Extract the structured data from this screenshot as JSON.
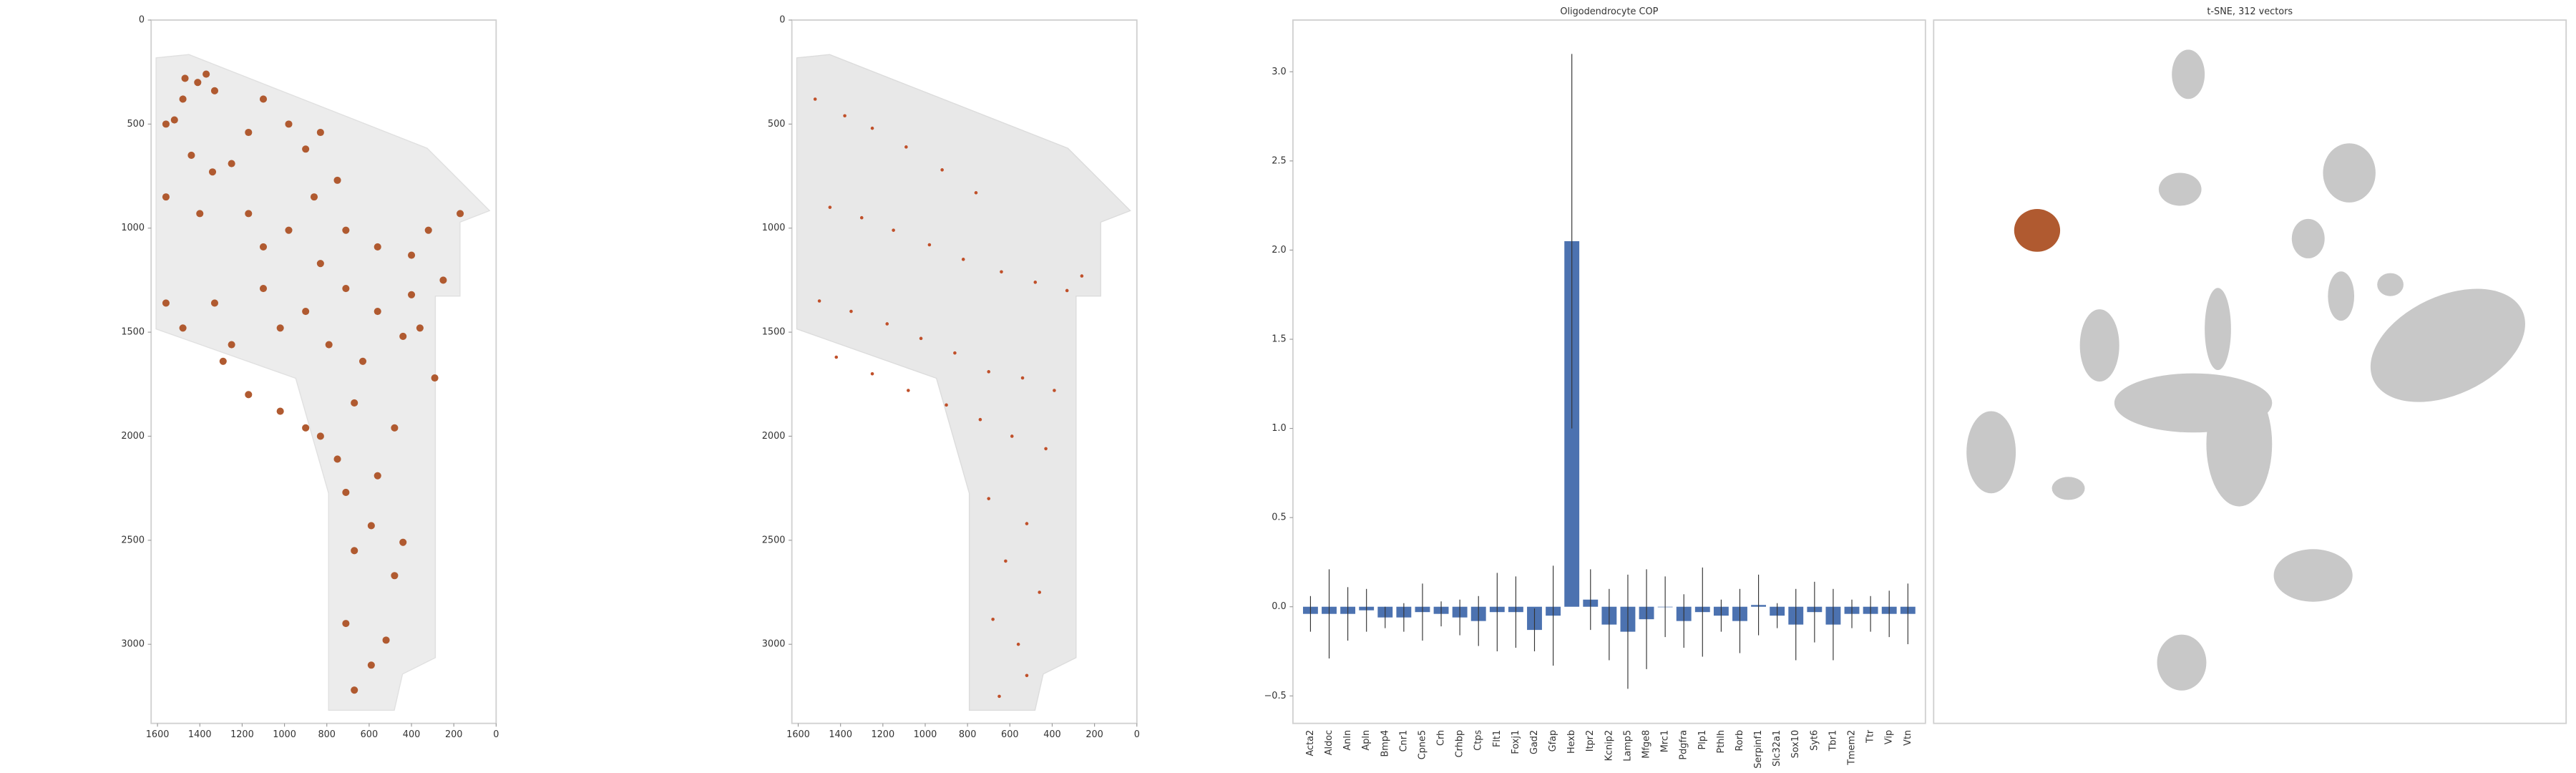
{
  "chart_data": [
    {
      "type": "scatter",
      "color": "#b05a30",
      "xlim": [
        1630,
        0
      ],
      "ylim": [
        3380,
        0
      ],
      "xticks": [
        1600,
        1400,
        1200,
        1000,
        800,
        600,
        400,
        200,
        0
      ],
      "yticks": [
        0,
        500,
        1000,
        1500,
        2000,
        2500,
        3000
      ],
      "x": [
        1470,
        1410,
        1370,
        1330,
        1480,
        1560,
        1520,
        1440,
        1340,
        1250,
        1170,
        1100,
        980,
        900,
        830,
        750,
        860,
        1170,
        1400,
        1560,
        1100,
        980,
        830,
        710,
        560,
        400,
        320,
        170,
        250,
        400,
        560,
        710,
        900,
        1100,
        1330,
        1480,
        1250,
        1020,
        790,
        630,
        440,
        670,
        830,
        900,
        750,
        560,
        710,
        590,
        440,
        670,
        480,
        710,
        520,
        590,
        670,
        480,
        360,
        290,
        1170,
        1020,
        1290,
        1560
      ],
      "y": [
        280,
        300,
        260,
        340,
        380,
        500,
        480,
        650,
        730,
        690,
        540,
        380,
        500,
        620,
        540,
        770,
        850,
        930,
        930,
        850,
        1090,
        1010,
        1170,
        1010,
        1090,
        1130,
        1010,
        930,
        1250,
        1320,
        1400,
        1290,
        1400,
        1290,
        1360,
        1480,
        1560,
        1480,
        1560,
        1640,
        1520,
        1840,
        2000,
        1960,
        2110,
        2190,
        2270,
        2430,
        2510,
        2550,
        2670,
        2900,
        2980,
        3100,
        3220,
        1960,
        1480,
        1720,
        1800,
        1880,
        1640,
        1360
      ]
    },
    {
      "type": "scatter",
      "color": "#c0502a",
      "xlim": [
        1630,
        0
      ],
      "ylim": [
        3380,
        0
      ],
      "xticks": [
        1600,
        1400,
        1200,
        1000,
        800,
        600,
        400,
        200,
        0
      ],
      "yticks": [
        0,
        500,
        1000,
        1500,
        2000,
        2500,
        3000
      ],
      "x": [
        1520,
        1380,
        1250,
        1090,
        920,
        760,
        1450,
        1300,
        1150,
        980,
        820,
        640,
        480,
        330,
        1500,
        1350,
        1180,
        1020,
        860,
        700,
        540,
        390,
        260,
        1420,
        1250,
        1080,
        900,
        740,
        590,
        430,
        700,
        520,
        620,
        460,
        680,
        560,
        520,
        650
      ],
      "y": [
        380,
        460,
        520,
        610,
        720,
        830,
        900,
        950,
        1010,
        1080,
        1150,
        1210,
        1260,
        1300,
        1350,
        1400,
        1460,
        1530,
        1600,
        1690,
        1720,
        1780,
        1230,
        1620,
        1700,
        1780,
        1850,
        1920,
        2000,
        2060,
        2300,
        2420,
        2600,
        2750,
        2880,
        3000,
        3150,
        3250
      ]
    },
    {
      "type": "bar",
      "title": "Oligodendrocyte COP",
      "color": "#4c72b0",
      "categories": [
        "Acta2",
        "Aldoc",
        "Anln",
        "Apln",
        "Bmp4",
        "Cnr1",
        "Cpne5",
        "Crh",
        "Crhbp",
        "Ctps",
        "Flt1",
        "Foxj1",
        "Gad2",
        "Gfap",
        "Hexb",
        "Itpr2",
        "Kcnip2",
        "Lamp5",
        "Mfge8",
        "Mrc1",
        "Pdgfra",
        "Plp1",
        "Pthlh",
        "Rorb",
        "Serpinf1",
        "Slc32a1",
        "Sox10",
        "Syt6",
        "Tbr1",
        "Tmem2",
        "Ttr",
        "Vip",
        "Vtn"
      ],
      "values": [
        -0.04,
        -0.04,
        -0.04,
        -0.02,
        -0.06,
        -0.06,
        -0.03,
        -0.04,
        -0.06,
        -0.08,
        -0.03,
        -0.03,
        -0.13,
        -0.05,
        2.05,
        0.04,
        -0.1,
        -0.14,
        -0.07,
        0.0,
        -0.08,
        -0.03,
        -0.05,
        -0.08,
        0.01,
        -0.05,
        -0.1,
        -0.03,
        -0.1,
        -0.04,
        -0.04,
        -0.04,
        -0.04
      ],
      "errors": [
        0.1,
        0.25,
        0.15,
        0.12,
        0.06,
        0.08,
        0.16,
        0.07,
        0.1,
        0.14,
        0.22,
        0.2,
        0.12,
        0.28,
        1.05,
        0.17,
        0.2,
        0.32,
        0.28,
        0.17,
        0.15,
        0.25,
        0.09,
        0.18,
        0.17,
        0.07,
        0.2,
        0.17,
        0.2,
        0.08,
        0.1,
        0.13,
        0.17
      ],
      "ylim": [
        -0.654,
        3.29
      ],
      "yticks": [
        {
          "value": -0.5,
          "label": "−0.5"
        },
        {
          "value": 0,
          "label": "0.0"
        },
        0.5,
        {
          "value": 1,
          "label": "1.0"
        },
        1.5,
        {
          "value": 2,
          "label": "2.0"
        },
        2.5,
        {
          "value": 3,
          "label": "3.0"
        }
      ]
    },
    {
      "type": "scatter",
      "title": "t-SNE, 312 vectors"
    }
  ]
}
